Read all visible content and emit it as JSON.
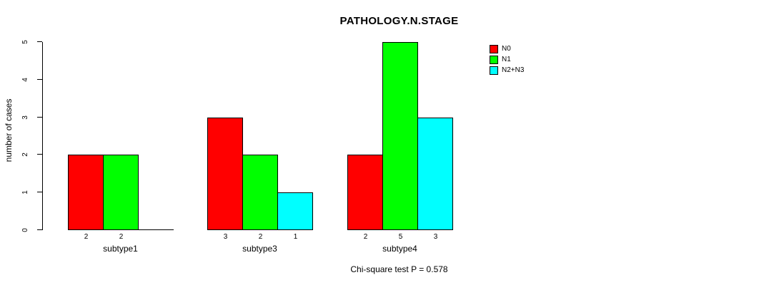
{
  "chart_data": {
    "type": "bar",
    "title": "PATHOLOGY.N.STAGE",
    "ylabel": "number of cases",
    "xlabel": "",
    "ylim": [
      0,
      5
    ],
    "yticks": [
      "0",
      "1",
      "2",
      "3",
      "4",
      "5"
    ],
    "categories": [
      "subtype1",
      "subtype3",
      "subtype4"
    ],
    "series": [
      {
        "name": "N0",
        "color": "#ff0000",
        "values": [
          2,
          3,
          2
        ]
      },
      {
        "name": "N1",
        "color": "#00ff00",
        "values": [
          2,
          2,
          5
        ]
      },
      {
        "name": "N2+N3",
        "color": "#00ffff",
        "values": [
          0,
          1,
          3
        ]
      }
    ],
    "bar_value_labels_shown": true,
    "zero_bars_drawn_as_line": true,
    "legend_position": "top-right",
    "grid": false,
    "background_color": "#ffffff",
    "axis_color": "#000000",
    "footnote": "Chi-square test P = 0.578"
  }
}
